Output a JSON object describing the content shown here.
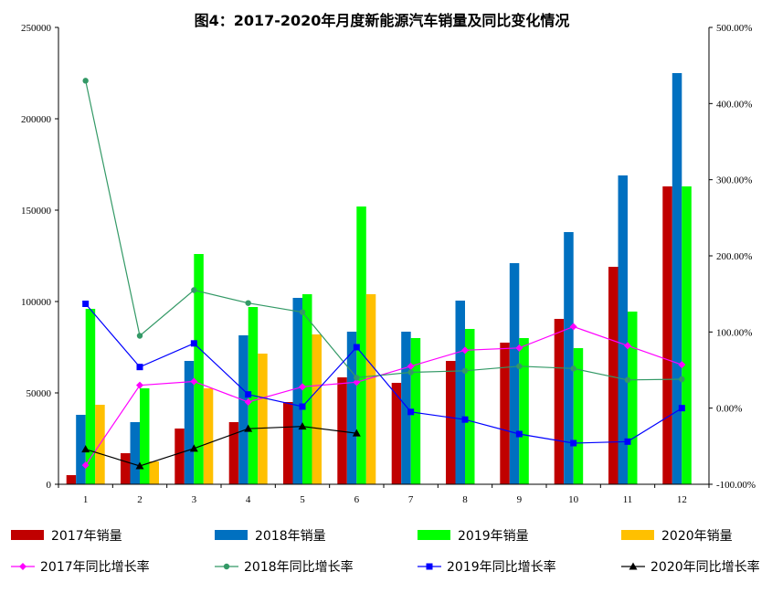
{
  "chart_data": {
    "type": "bar",
    "title": "图4：2017-2020年月度新能源汽车销量及同比变化情况",
    "categories": [
      "1",
      "2",
      "3",
      "4",
      "5",
      "6",
      "7",
      "8",
      "9",
      "10",
      "11",
      "12"
    ],
    "y_left": {
      "min": 0,
      "max": 250000,
      "ticks": [
        "0",
        "50000",
        "100000",
        "150000",
        "200000",
        "250000"
      ]
    },
    "y_right": {
      "min": -100,
      "max": 500,
      "ticks": [
        "-100.00%",
        "0.00%",
        "100.00%",
        "200.00%",
        "300.00%",
        "400.00%",
        "500.00%"
      ]
    },
    "grid": false,
    "legend_position": "bottom",
    "bar_series": [
      {
        "name": "2017年销量",
        "color": "#c00000",
        "values": [
          5000,
          17000,
          30500,
          34000,
          45000,
          58500,
          55500,
          67500,
          77500,
          90500,
          119000,
          163000
        ]
      },
      {
        "name": "2018年销量",
        "color": "#0070c0",
        "values": [
          38000,
          34000,
          67500,
          81500,
          102000,
          83500,
          83500,
          100500,
          121000,
          138000,
          169000,
          225000
        ]
      },
      {
        "name": "2019年销量",
        "color": "#00ff00",
        "values": [
          96000,
          52500,
          126000,
          97000,
          104000,
          152000,
          80000,
          85000,
          80000,
          74500,
          94500,
          163000
        ]
      },
      {
        "name": "2020年销量",
        "color": "#ffc000",
        "values": [
          43500,
          12500,
          52500,
          71500,
          82000,
          104000,
          null,
          null,
          null,
          null,
          null,
          null
        ]
      }
    ],
    "line_series": [
      {
        "name": "2017年同比增长率",
        "color": "#ff00ff",
        "marker": "diamond",
        "values": [
          -75,
          30,
          35,
          8,
          28,
          34,
          55,
          76,
          79,
          107,
          82,
          57
        ]
      },
      {
        "name": "2018年同比增长率",
        "color": "#339966",
        "marker": "circle",
        "values": [
          430,
          95,
          155,
          138,
          126,
          40,
          47,
          49,
          55,
          52,
          37,
          38
        ]
      },
      {
        "name": "2019年同比增长率",
        "color": "#0000ff",
        "marker": "square",
        "values": [
          137,
          54,
          85,
          18,
          2,
          80,
          -5,
          -15,
          -34,
          -46,
          -44,
          0
        ]
      },
      {
        "name": "2020年同比增长率",
        "color": "#000000",
        "marker": "triangle",
        "values": [
          -54,
          -76,
          -53,
          -27,
          -24,
          -33,
          null,
          null,
          null,
          null,
          null,
          null
        ]
      }
    ]
  }
}
